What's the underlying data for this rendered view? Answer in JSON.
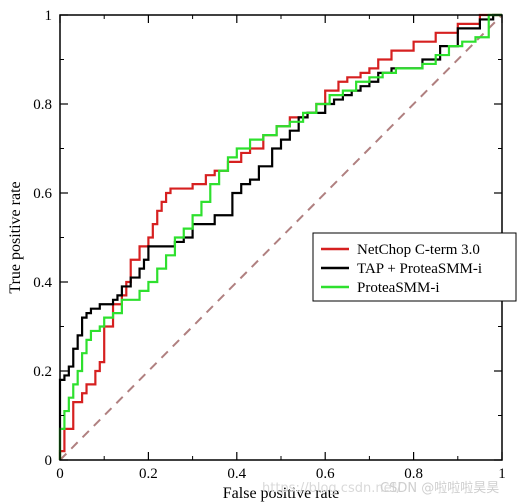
{
  "chart_data": {
    "type": "line",
    "xlabel": "False positive rate",
    "ylabel": "True positive rate",
    "xlim": [
      0,
      1
    ],
    "ylim": [
      0,
      1
    ],
    "xticks": [
      "0",
      "0.2",
      "0.4",
      "0.6",
      "0.8",
      "1"
    ],
    "yticks": [
      "0",
      "0.2",
      "0.4",
      "0.6",
      "0.8",
      "1"
    ],
    "legend_position": "center-right",
    "grid": false,
    "series": [
      {
        "name": "NetChop C-term 3.0",
        "color": "#d62020",
        "x": [
          0,
          0.01,
          0.01,
          0.03,
          0.03,
          0.05,
          0.06,
          0.08,
          0.09,
          0.1,
          0.1,
          0.11,
          0.12,
          0.12,
          0.14,
          0.15,
          0.16,
          0.18,
          0.2,
          0.21,
          0.22,
          0.23,
          0.24,
          0.25,
          0.26,
          0.28,
          0.3,
          0.33,
          0.35,
          0.37,
          0.38,
          0.41,
          0.43,
          0.46,
          0.49,
          0.52,
          0.56,
          0.58,
          0.6,
          0.63,
          0.65,
          0.68,
          0.7,
          0.72,
          0.75,
          0.8,
          0.85,
          0.9,
          0.95,
          1.0
        ],
        "y": [
          0,
          0.02,
          0.05,
          0.07,
          0.1,
          0.13,
          0.15,
          0.17,
          0.2,
          0.22,
          0.26,
          0.3,
          0.3,
          0.33,
          0.35,
          0.37,
          0.4,
          0.45,
          0.48,
          0.5,
          0.53,
          0.56,
          0.58,
          0.6,
          0.61,
          0.61,
          0.61,
          0.62,
          0.64,
          0.65,
          0.65,
          0.67,
          0.69,
          0.7,
          0.73,
          0.75,
          0.77,
          0.78,
          0.8,
          0.83,
          0.85,
          0.86,
          0.87,
          0.88,
          0.9,
          0.92,
          0.94,
          0.96,
          0.98,
          1.0
        ]
      },
      {
        "name": "TAP + ProteaSMM-i",
        "color": "#000000",
        "x": [
          0,
          0.0,
          0.01,
          0.02,
          0.03,
          0.04,
          0.05,
          0.06,
          0.07,
          0.08,
          0.09,
          0.1,
          0.12,
          0.13,
          0.14,
          0.16,
          0.18,
          0.19,
          0.2,
          0.22,
          0.24,
          0.26,
          0.28,
          0.3,
          0.32,
          0.35,
          0.37,
          0.39,
          0.41,
          0.43,
          0.45,
          0.48,
          0.5,
          0.52,
          0.54,
          0.56,
          0.58,
          0.6,
          0.62,
          0.64,
          0.66,
          0.68,
          0.7,
          0.72,
          0.75,
          0.78,
          0.82,
          0.86,
          0.9,
          0.95,
          0.98,
          1.0
        ],
        "y": [
          0,
          0.15,
          0.18,
          0.19,
          0.21,
          0.25,
          0.28,
          0.32,
          0.33,
          0.34,
          0.34,
          0.35,
          0.35,
          0.36,
          0.37,
          0.39,
          0.41,
          0.43,
          0.45,
          0.48,
          0.48,
          0.48,
          0.49,
          0.5,
          0.53,
          0.53,
          0.55,
          0.55,
          0.6,
          0.62,
          0.63,
          0.66,
          0.7,
          0.72,
          0.74,
          0.77,
          0.78,
          0.78,
          0.8,
          0.81,
          0.82,
          0.83,
          0.84,
          0.85,
          0.87,
          0.88,
          0.88,
          0.9,
          0.93,
          0.97,
          0.99,
          1.0
        ]
      },
      {
        "name": "ProteaSMM-i",
        "color": "#2ee02e",
        "x": [
          0,
          0.01,
          0.02,
          0.03,
          0.04,
          0.05,
          0.06,
          0.07,
          0.08,
          0.09,
          0.1,
          0.12,
          0.14,
          0.16,
          0.18,
          0.2,
          0.22,
          0.24,
          0.26,
          0.28,
          0.3,
          0.32,
          0.34,
          0.36,
          0.38,
          0.4,
          0.43,
          0.46,
          0.49,
          0.52,
          0.55,
          0.58,
          0.61,
          0.64,
          0.67,
          0.7,
          0.73,
          0.76,
          0.79,
          0.82,
          0.85,
          0.88,
          0.91,
          0.94,
          0.97,
          1.0
        ],
        "y": [
          0,
          0.07,
          0.11,
          0.14,
          0.17,
          0.2,
          0.24,
          0.27,
          0.29,
          0.29,
          0.3,
          0.32,
          0.33,
          0.36,
          0.36,
          0.38,
          0.4,
          0.43,
          0.46,
          0.5,
          0.52,
          0.55,
          0.58,
          0.62,
          0.65,
          0.68,
          0.7,
          0.72,
          0.73,
          0.75,
          0.76,
          0.78,
          0.8,
          0.82,
          0.83,
          0.85,
          0.86,
          0.87,
          0.88,
          0.88,
          0.89,
          0.91,
          0.93,
          0.94,
          0.95,
          1.0
        ]
      }
    ],
    "diagonal": {
      "style": "dashed",
      "color": "#b08080",
      "x": [
        0,
        1
      ],
      "y": [
        0,
        1
      ]
    }
  },
  "watermark": {
    "text": "CSDN @啦啦啦昊昊",
    "faded_text": "https://blog.csdn.net/"
  }
}
